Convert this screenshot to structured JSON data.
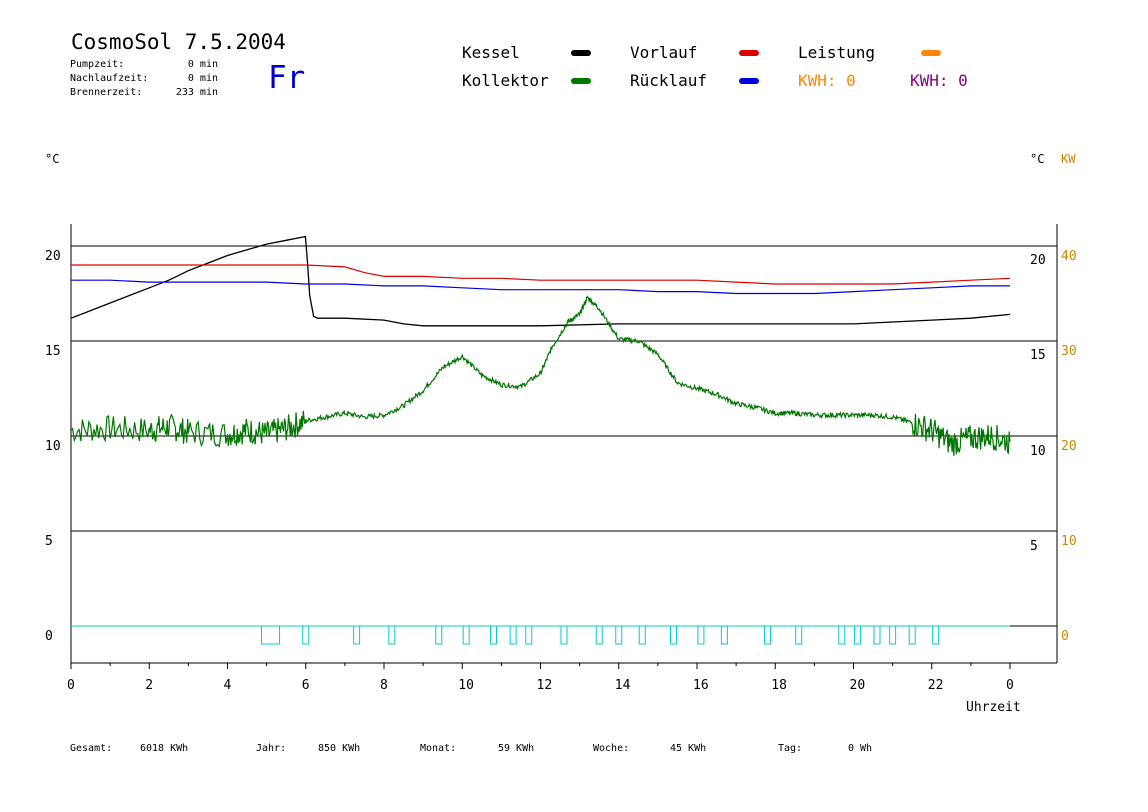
{
  "header": {
    "title": "CosmoSol 7.5.2004",
    "weekday": "Fr",
    "stats": [
      {
        "label": "Pumpzeit:",
        "value": "0 min"
      },
      {
        "label": "Nachlaufzeit:",
        "value": "0 min"
      },
      {
        "label": "Brennerzeit:",
        "value": "233 min"
      }
    ]
  },
  "legend": {
    "kessel": "Kessel",
    "kollektor": "Kollektor",
    "vorlauf": "Vorlauf",
    "ruecklauf": "Rücklauf",
    "leistung": "Leistung",
    "kwh_orange": "KWH: 0",
    "kwh_purple": "KWH: 0"
  },
  "colors": {
    "kessel": "#000000",
    "kollektor": "#007700",
    "vorlauf": "#dd0000",
    "ruecklauf": "#0000dd",
    "leistung": "#ff8800",
    "kwh_purple": "#880088",
    "pump": "#00cccc",
    "grid": "#000000"
  },
  "axes": {
    "left_unit": "°C",
    "right_unit": "°C",
    "right_unit2": "KW",
    "xlabel": "Uhrzeit"
  },
  "footer": {
    "gesamt_label": "Gesamt:",
    "gesamt_value": "6018 KWh",
    "jahr_label": "Jahr:",
    "jahr_value": "850 KWh",
    "monat_label": "Monat:",
    "monat_value": "59 KWh",
    "woche_label": "Woche:",
    "woche_value": "45 KWh",
    "tag_label": "Tag:",
    "tag_value": "0 Wh"
  },
  "chart_data": {
    "type": "line",
    "xlabel": "Uhrzeit",
    "x_ticks": [
      "0",
      "2",
      "4",
      "6",
      "8",
      "10",
      "12",
      "14",
      "16",
      "18",
      "20",
      "22",
      "0"
    ],
    "xlim": [
      0,
      24
    ],
    "y_left": {
      "ticks": [
        "20",
        "15",
        "10",
        "5",
        "0"
      ],
      "ylim": [
        -1.9,
        21.2
      ]
    },
    "y_right": {
      "ticks": [
        "20",
        "15",
        "10",
        "5"
      ]
    },
    "y_right_kw": {
      "ticks": [
        "40",
        "30",
        "20",
        "10",
        "0"
      ]
    },
    "series": [
      {
        "name": "Kessel",
        "x": [
          0,
          0.5,
          1,
          1.5,
          2,
          2.5,
          3,
          3.5,
          4,
          4.5,
          5,
          5.5,
          5.99,
          6.05,
          6.1,
          6.2,
          6.3,
          7,
          8,
          8.5,
          9,
          10,
          12,
          14,
          16,
          17,
          18,
          19,
          20,
          21,
          22,
          23,
          24
        ],
        "y": [
          16.2,
          16.6,
          17.0,
          17.4,
          17.8,
          18.2,
          18.7,
          19.1,
          19.5,
          19.8,
          20.1,
          20.3,
          20.5,
          19.0,
          17.4,
          16.3,
          16.2,
          16.2,
          16.1,
          15.9,
          15.8,
          15.8,
          15.8,
          15.9,
          15.9,
          15.9,
          15.9,
          15.9,
          15.9,
          16.0,
          16.1,
          16.2,
          16.4
        ]
      },
      {
        "name": "Vorlauf",
        "x": [
          0,
          1,
          2,
          3,
          4,
          5,
          6,
          7,
          7.5,
          8,
          9,
          10,
          11,
          12,
          13,
          14,
          15,
          16,
          17,
          18,
          19,
          20,
          21,
          22,
          23,
          24
        ],
        "y": [
          19.0,
          19.0,
          19.0,
          19.0,
          19.0,
          19.0,
          19.0,
          18.9,
          18.6,
          18.4,
          18.4,
          18.3,
          18.3,
          18.2,
          18.2,
          18.2,
          18.2,
          18.2,
          18.1,
          18.0,
          18.0,
          18.0,
          18.0,
          18.1,
          18.2,
          18.3
        ]
      },
      {
        "name": "Rücklauf",
        "x": [
          0,
          1,
          2,
          3,
          4,
          5,
          6,
          7,
          8,
          9,
          10,
          11,
          12,
          13,
          14,
          15,
          16,
          17,
          18,
          19,
          20,
          21,
          22,
          23,
          24
        ],
        "y": [
          18.2,
          18.2,
          18.1,
          18.1,
          18.1,
          18.1,
          18.0,
          18.0,
          17.9,
          17.9,
          17.8,
          17.7,
          17.7,
          17.7,
          17.7,
          17.6,
          17.6,
          17.5,
          17.5,
          17.5,
          17.6,
          17.7,
          17.8,
          17.9,
          17.9
        ]
      },
      {
        "name": "Kollektor",
        "x": [
          0,
          1,
          2,
          2.5,
          3,
          4,
          4.5,
          5,
          5.5,
          6,
          6.5,
          7,
          7.5,
          8,
          8.5,
          9,
          9.5,
          10,
          10.5,
          11,
          11.5,
          12,
          12.3,
          12.7,
          13,
          13.2,
          13.5,
          14,
          14.5,
          15,
          15.5,
          16,
          16.5,
          17,
          17.5,
          18,
          18.5,
          19,
          19.5,
          20,
          20.5,
          21,
          21.5,
          22,
          22.5,
          23,
          23.5,
          24
        ],
        "y": [
          10.3,
          10.4,
          10.3,
          10.5,
          10.2,
          10.1,
          10.3,
          10.1,
          10.4,
          10.8,
          11.0,
          11.2,
          11.0,
          11.1,
          11.6,
          12.4,
          13.6,
          14.2,
          13.2,
          12.7,
          12.6,
          13.3,
          14.7,
          16.0,
          16.4,
          17.3,
          16.7,
          15.1,
          15.0,
          14.3,
          12.8,
          12.5,
          12.2,
          11.7,
          11.5,
          11.2,
          11.2,
          11.1,
          11.1,
          11.1,
          11.1,
          11.0,
          10.7,
          10.3,
          9.6,
          9.9,
          10.0,
          9.7
        ]
      }
    ]
  }
}
